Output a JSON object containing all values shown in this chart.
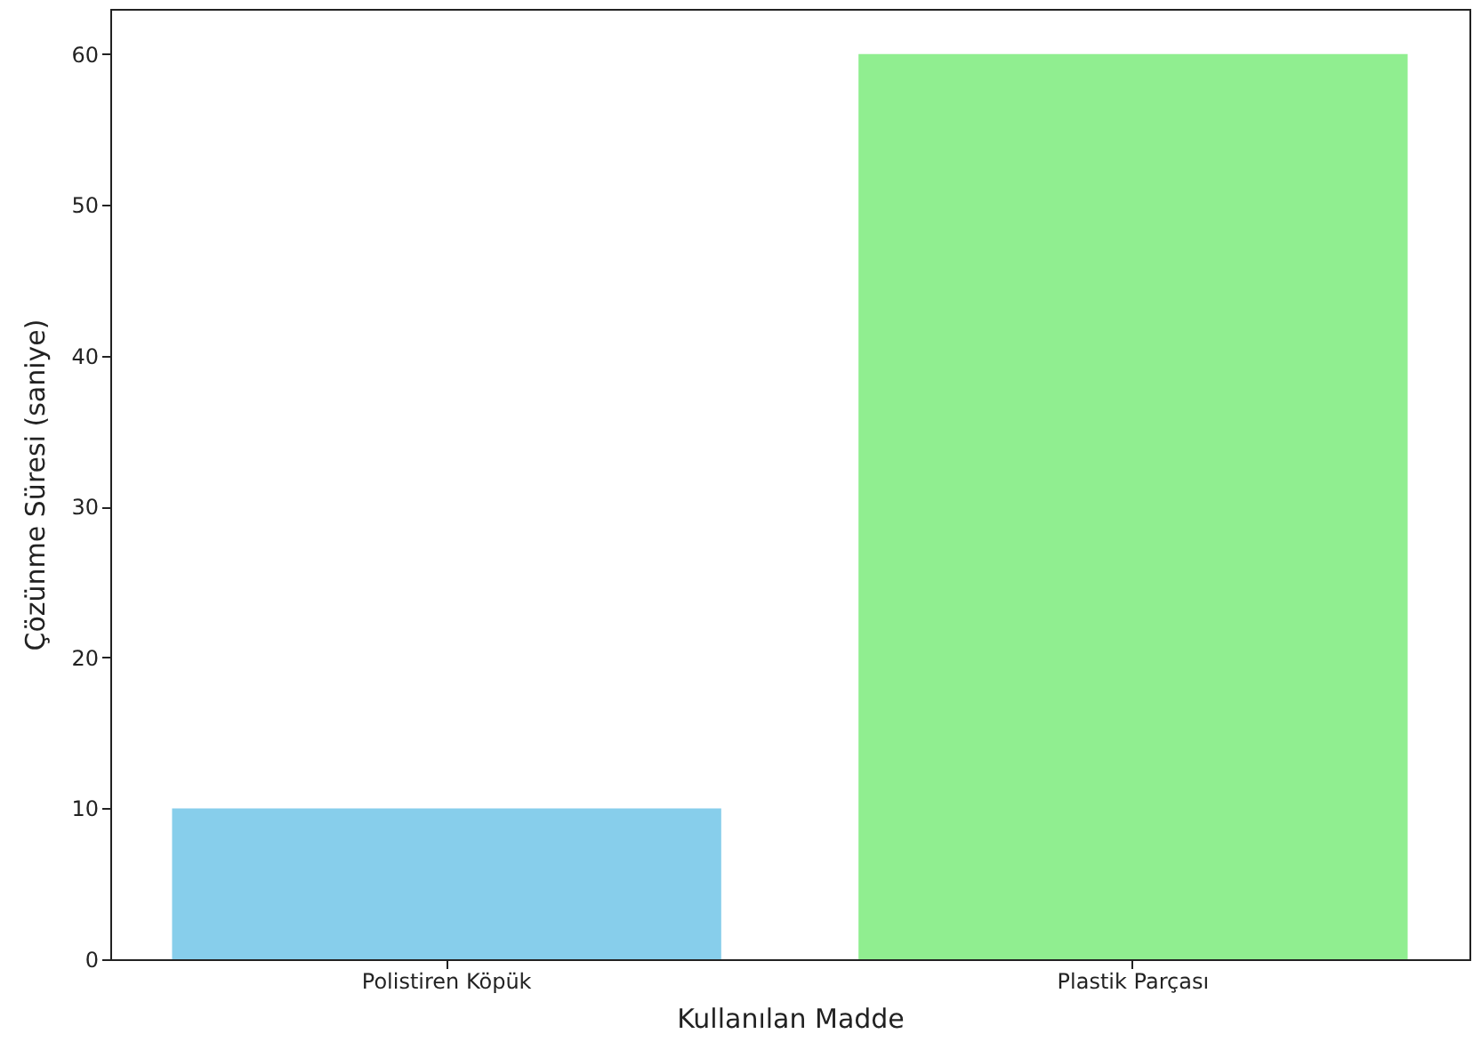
{
  "chart_data": {
    "type": "bar",
    "xlabel": "Kullanılan Madde",
    "ylabel": "Çözünme Süresi (saniye)",
    "categories": [
      "Polistiren Köpük",
      "Plastik Parçası"
    ],
    "values": [
      10,
      60
    ],
    "colors": [
      "#87ceeb",
      "#90ee90"
    ],
    "ylim": [
      0,
      63
    ],
    "yticks": [
      0,
      10,
      20,
      30,
      40,
      50,
      60
    ],
    "grid": false
  }
}
